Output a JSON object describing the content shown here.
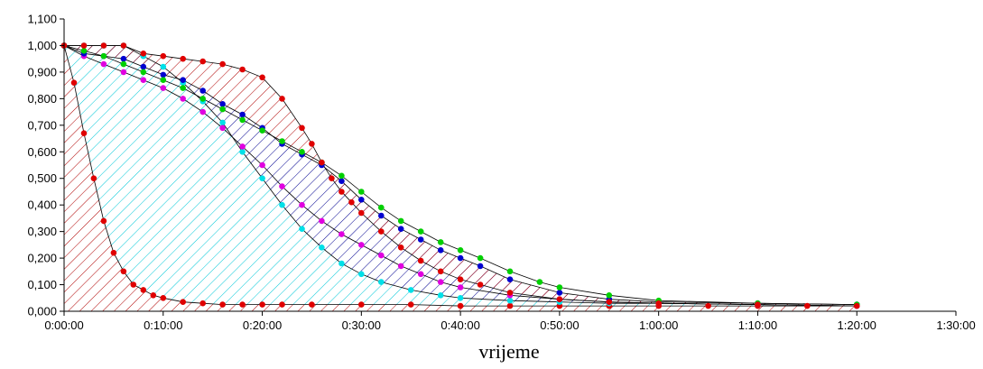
{
  "chart_data": {
    "type": "line",
    "xlabel": "vrijeme",
    "ylabel": "",
    "xlim_min": [
      0,
      90
    ],
    "ylim": [
      0,
      1.1
    ],
    "x_ticks": [
      {
        "min": 0,
        "label": "0:00:00"
      },
      {
        "min": 10,
        "label": "0:10:00"
      },
      {
        "min": 20,
        "label": "0:20:00"
      },
      {
        "min": 30,
        "label": "0:30:00"
      },
      {
        "min": 40,
        "label": "0:40:00"
      },
      {
        "min": 50,
        "label": "0:50:00"
      },
      {
        "min": 60,
        "label": "1:00:00"
      },
      {
        "min": 70,
        "label": "1:10:00"
      },
      {
        "min": 80,
        "label": "1:20:00"
      },
      {
        "min": 90,
        "label": "1:30:00"
      }
    ],
    "y_ticks": [
      {
        "v": 0.0,
        "label": "0,000"
      },
      {
        "v": 0.1,
        "label": "0,100"
      },
      {
        "v": 0.2,
        "label": "0,200"
      },
      {
        "v": 0.3,
        "label": "0,300"
      },
      {
        "v": 0.4,
        "label": "0,400"
      },
      {
        "v": 0.5,
        "label": "0,500"
      },
      {
        "v": 0.6,
        "label": "0,600"
      },
      {
        "v": 0.7,
        "label": "0,700"
      },
      {
        "v": 0.8,
        "label": "0,800"
      },
      {
        "v": 0.9,
        "label": "0,900"
      },
      {
        "v": 1.0,
        "label": "1,000"
      },
      {
        "v": 1.1,
        "label": "1,100"
      }
    ],
    "colors": {
      "red": "#e00000",
      "cyan": "#00e0e8",
      "magenta": "#e000e0",
      "blue": "#0000d0",
      "green": "#00d000",
      "line": "#000000",
      "hatch_red": "#b00000",
      "hatch_cyan": "#00c8d8",
      "hatch_blue": "#000090"
    },
    "series": [
      {
        "key": "red_fast",
        "color": "#e00000",
        "points": [
          [
            0,
            1.0
          ],
          [
            1,
            0.86
          ],
          [
            2,
            0.67
          ],
          [
            3,
            0.5
          ],
          [
            4,
            0.34
          ],
          [
            5,
            0.22
          ],
          [
            6,
            0.15
          ],
          [
            7,
            0.1
          ],
          [
            8,
            0.08
          ],
          [
            9,
            0.06
          ],
          [
            10,
            0.05
          ],
          [
            12,
            0.035
          ],
          [
            14,
            0.03
          ],
          [
            16,
            0.025
          ],
          [
            18,
            0.025
          ],
          [
            20,
            0.025
          ],
          [
            22,
            0.025
          ],
          [
            25,
            0.025
          ],
          [
            30,
            0.025
          ],
          [
            35,
            0.025
          ],
          [
            40,
            0.02
          ],
          [
            45,
            0.02
          ],
          [
            50,
            0.02
          ],
          [
            55,
            0.02
          ],
          [
            60,
            0.02
          ],
          [
            65,
            0.02
          ],
          [
            70,
            0.02
          ],
          [
            75,
            0.02
          ],
          [
            80,
            0.02
          ]
        ]
      },
      {
        "key": "cyan",
        "color": "#00e0e8",
        "points": [
          [
            0,
            1.0
          ],
          [
            2,
            1.0
          ],
          [
            4,
            1.0
          ],
          [
            6,
            1.0
          ],
          [
            8,
            0.96
          ],
          [
            10,
            0.92
          ],
          [
            12,
            0.86
          ],
          [
            14,
            0.79
          ],
          [
            16,
            0.71
          ],
          [
            18,
            0.6
          ],
          [
            20,
            0.5
          ],
          [
            22,
            0.4
          ],
          [
            24,
            0.31
          ],
          [
            26,
            0.24
          ],
          [
            28,
            0.18
          ],
          [
            30,
            0.14
          ],
          [
            32,
            0.11
          ],
          [
            35,
            0.08
          ],
          [
            38,
            0.06
          ],
          [
            40,
            0.05
          ],
          [
            45,
            0.04
          ],
          [
            50,
            0.035
          ],
          [
            55,
            0.03
          ],
          [
            60,
            0.03
          ],
          [
            70,
            0.025
          ],
          [
            80,
            0.02
          ]
        ]
      },
      {
        "key": "magenta",
        "color": "#e000e0",
        "points": [
          [
            0,
            1.0
          ],
          [
            2,
            0.96
          ],
          [
            4,
            0.93
          ],
          [
            6,
            0.9
          ],
          [
            8,
            0.87
          ],
          [
            10,
            0.84
          ],
          [
            12,
            0.8
          ],
          [
            14,
            0.75
          ],
          [
            16,
            0.69
          ],
          [
            18,
            0.62
          ],
          [
            20,
            0.55
          ],
          [
            22,
            0.47
          ],
          [
            24,
            0.4
          ],
          [
            26,
            0.34
          ],
          [
            28,
            0.29
          ],
          [
            30,
            0.25
          ],
          [
            32,
            0.21
          ],
          [
            34,
            0.17
          ],
          [
            36,
            0.14
          ],
          [
            38,
            0.11
          ],
          [
            40,
            0.09
          ],
          [
            45,
            0.06
          ],
          [
            50,
            0.045
          ],
          [
            55,
            0.035
          ],
          [
            60,
            0.03
          ],
          [
            70,
            0.025
          ],
          [
            80,
            0.02
          ]
        ]
      },
      {
        "key": "blue",
        "color": "#0000d0",
        "points": [
          [
            0,
            1.0
          ],
          [
            2,
            0.97
          ],
          [
            4,
            0.96
          ],
          [
            6,
            0.95
          ],
          [
            8,
            0.92
          ],
          [
            10,
            0.89
          ],
          [
            12,
            0.87
          ],
          [
            14,
            0.83
          ],
          [
            16,
            0.78
          ],
          [
            18,
            0.74
          ],
          [
            20,
            0.69
          ],
          [
            22,
            0.63
          ],
          [
            24,
            0.59
          ],
          [
            26,
            0.55
          ],
          [
            28,
            0.49
          ],
          [
            30,
            0.42
          ],
          [
            32,
            0.36
          ],
          [
            34,
            0.31
          ],
          [
            36,
            0.27
          ],
          [
            38,
            0.23
          ],
          [
            40,
            0.2
          ],
          [
            42,
            0.17
          ],
          [
            45,
            0.12
          ],
          [
            50,
            0.07
          ],
          [
            55,
            0.045
          ],
          [
            60,
            0.035
          ],
          [
            70,
            0.03
          ],
          [
            80,
            0.025
          ]
        ]
      },
      {
        "key": "green",
        "color": "#00d000",
        "points": [
          [
            0,
            1.0
          ],
          [
            2,
            0.98
          ],
          [
            4,
            0.96
          ],
          [
            6,
            0.93
          ],
          [
            8,
            0.9
          ],
          [
            10,
            0.87
          ],
          [
            12,
            0.84
          ],
          [
            14,
            0.8
          ],
          [
            16,
            0.76
          ],
          [
            18,
            0.72
          ],
          [
            20,
            0.68
          ],
          [
            22,
            0.64
          ],
          [
            24,
            0.6
          ],
          [
            26,
            0.56
          ],
          [
            28,
            0.51
          ],
          [
            30,
            0.45
          ],
          [
            32,
            0.39
          ],
          [
            34,
            0.34
          ],
          [
            36,
            0.3
          ],
          [
            38,
            0.26
          ],
          [
            40,
            0.23
          ],
          [
            42,
            0.2
          ],
          [
            45,
            0.15
          ],
          [
            48,
            0.11
          ],
          [
            50,
            0.09
          ],
          [
            55,
            0.06
          ],
          [
            60,
            0.04
          ],
          [
            70,
            0.03
          ],
          [
            80,
            0.025
          ]
        ]
      },
      {
        "key": "red_slow",
        "color": "#e00000",
        "points": [
          [
            0,
            1.0
          ],
          [
            2,
            1.0
          ],
          [
            4,
            1.0
          ],
          [
            6,
            1.0
          ],
          [
            8,
            0.97
          ],
          [
            10,
            0.96
          ],
          [
            12,
            0.95
          ],
          [
            14,
            0.94
          ],
          [
            16,
            0.93
          ],
          [
            18,
            0.91
          ],
          [
            20,
            0.88
          ],
          [
            22,
            0.8
          ],
          [
            24,
            0.69
          ],
          [
            25,
            0.63
          ],
          [
            26,
            0.56
          ],
          [
            27,
            0.5
          ],
          [
            28,
            0.45
          ],
          [
            29,
            0.41
          ],
          [
            30,
            0.37
          ],
          [
            32,
            0.3
          ],
          [
            34,
            0.24
          ],
          [
            36,
            0.19
          ],
          [
            38,
            0.15
          ],
          [
            40,
            0.12
          ],
          [
            42,
            0.1
          ],
          [
            45,
            0.07
          ],
          [
            50,
            0.045
          ],
          [
            55,
            0.035
          ],
          [
            60,
            0.03
          ],
          [
            70,
            0.025
          ],
          [
            80,
            0.02
          ]
        ]
      }
    ],
    "hatched_bands": [
      {
        "between": [
          "baseline",
          "red_fast"
        ],
        "color": "#b00000"
      },
      {
        "between": [
          "red_fast",
          "cyan"
        ],
        "color": "#00c8d8"
      },
      {
        "between": [
          "cyan",
          "blue"
        ],
        "color": "#000090"
      },
      {
        "between": [
          "blue",
          "red_slow"
        ],
        "color": "#b00000"
      }
    ]
  }
}
